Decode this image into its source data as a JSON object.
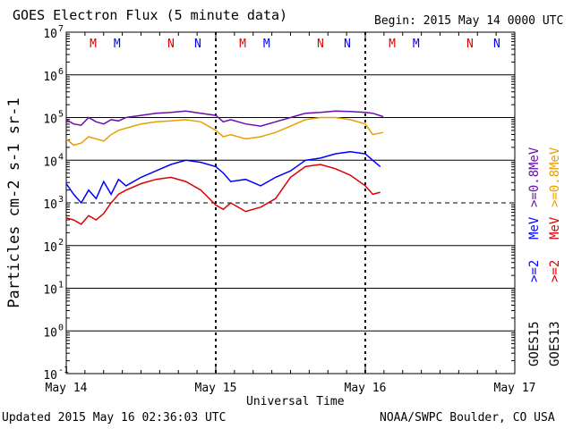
{
  "title": "GOES Electron Flux (5 minute data)",
  "begin_label": "Begin: 2015 May 14 0000 UTC",
  "updated_label": "Updated 2015 May 16 02:36:03 UTC",
  "credit_label": "NOAA/SWPC Boulder, CO USA",
  "colors": {
    "purple": "#6a0dad",
    "orange": "#e8a000",
    "blue": "#0000ff",
    "red": "#dd0000",
    "magenta": "#cc00cc"
  },
  "chart_data": {
    "type": "line",
    "xlabel": "Universal Time",
    "ylabel": "Particles cm-2 s-1 sr-1",
    "x_unit": "days since 2015 May 14 0000 UTC",
    "xlim": [
      0,
      3
    ],
    "ylim_log10": [
      -1,
      7
    ],
    "yscale": "log",
    "x_ticks": [
      {
        "x": 0,
        "label": "May 14"
      },
      {
        "x": 1,
        "label": "May 15"
      },
      {
        "x": 2,
        "label": "May 16"
      },
      {
        "x": 3,
        "label": "May 17"
      }
    ],
    "y_ticks": [
      {
        "exp": 7,
        "label": "7"
      },
      {
        "exp": 6,
        "label": "6"
      },
      {
        "exp": 5,
        "label": "5"
      },
      {
        "exp": 4,
        "label": "4"
      },
      {
        "exp": 3,
        "label": "3"
      },
      {
        "exp": 2,
        "label": "2"
      },
      {
        "exp": 1,
        "label": "1"
      },
      {
        "exp": 0,
        "label": "0"
      },
      {
        "exp": -1,
        "label": "-1"
      }
    ],
    "markers": [
      {
        "x": 0.18,
        "label": "M",
        "color": "red"
      },
      {
        "x": 0.34,
        "label": "M",
        "color": "blue"
      },
      {
        "x": 0.7,
        "label": "N",
        "color": "red"
      },
      {
        "x": 0.88,
        "label": "N",
        "color": "blue"
      },
      {
        "x": 1.18,
        "label": "M",
        "color": "red"
      },
      {
        "x": 1.34,
        "label": "M",
        "color": "blue"
      },
      {
        "x": 1.7,
        "label": "N",
        "color": "red"
      },
      {
        "x": 1.88,
        "label": "N",
        "color": "blue"
      },
      {
        "x": 2.18,
        "label": "M",
        "color": "red"
      },
      {
        "x": 2.34,
        "label": "M",
        "color": "blue"
      },
      {
        "x": 2.7,
        "label": "N",
        "color": "red"
      },
      {
        "x": 2.88,
        "label": "N",
        "color": "blue"
      }
    ],
    "threshold_log10": 3,
    "legend": [
      {
        "satellite": "GOES15",
        "energy": ">=2",
        "unit": "MeV",
        "low_label": ">=0.8",
        "colors": [
          "blue",
          "purple"
        ]
      },
      {
        "satellite": "GOES13",
        "energy": ">=2",
        "unit": "MeV",
        "low_label": ">=0.8",
        "colors": [
          "red",
          "orange"
        ]
      }
    ],
    "series": [
      {
        "name": "GOES15 >=0.8 MeV",
        "color": "purple",
        "x": [
          0,
          0.05,
          0.1,
          0.15,
          0.2,
          0.25,
          0.3,
          0.35,
          0.4,
          0.5,
          0.6,
          0.7,
          0.8,
          0.9,
          1.0,
          1.05,
          1.1,
          1.2,
          1.3,
          1.4,
          1.5,
          1.6,
          1.7,
          1.8,
          1.9,
          2.0,
          2.05,
          2.12
        ],
        "log": [
          4.95,
          4.85,
          4.82,
          5.0,
          4.9,
          4.85,
          4.95,
          4.92,
          5.0,
          5.05,
          5.1,
          5.12,
          5.15,
          5.1,
          5.05,
          4.9,
          4.95,
          4.85,
          4.8,
          4.9,
          5.0,
          5.1,
          5.12,
          5.15,
          5.14,
          5.12,
          5.1,
          5.02
        ]
      },
      {
        "name": "GOES13 >=0.8 MeV",
        "color": "orange",
        "x": [
          0,
          0.05,
          0.1,
          0.15,
          0.2,
          0.25,
          0.3,
          0.35,
          0.4,
          0.5,
          0.6,
          0.7,
          0.8,
          0.9,
          1.0,
          1.05,
          1.1,
          1.2,
          1.3,
          1.4,
          1.5,
          1.6,
          1.7,
          1.8,
          1.9,
          2.0,
          2.05,
          2.12
        ],
        "log": [
          4.5,
          4.35,
          4.4,
          4.55,
          4.5,
          4.45,
          4.6,
          4.7,
          4.75,
          4.85,
          4.9,
          4.92,
          4.95,
          4.9,
          4.7,
          4.55,
          4.6,
          4.5,
          4.55,
          4.65,
          4.8,
          4.95,
          5.0,
          5.0,
          4.95,
          4.85,
          4.6,
          4.65
        ]
      },
      {
        "name": "GOES15 >=2 MeV",
        "color": "blue",
        "x": [
          0,
          0.05,
          0.1,
          0.15,
          0.2,
          0.25,
          0.3,
          0.35,
          0.4,
          0.5,
          0.6,
          0.7,
          0.8,
          0.9,
          1.0,
          1.05,
          1.1,
          1.2,
          1.3,
          1.4,
          1.5,
          1.6,
          1.7,
          1.8,
          1.9,
          2.0,
          2.05,
          2.1
        ],
        "log": [
          3.45,
          3.2,
          3.0,
          3.3,
          3.1,
          3.5,
          3.2,
          3.55,
          3.4,
          3.6,
          3.75,
          3.9,
          4.0,
          3.95,
          3.85,
          3.7,
          3.5,
          3.55,
          3.4,
          3.6,
          3.75,
          4.0,
          4.05,
          4.15,
          4.2,
          4.15,
          4.0,
          3.85
        ]
      },
      {
        "name": "GOES13 >=2 MeV",
        "color": "red",
        "x": [
          0,
          0.05,
          0.1,
          0.15,
          0.2,
          0.25,
          0.3,
          0.35,
          0.4,
          0.5,
          0.6,
          0.7,
          0.8,
          0.9,
          1.0,
          1.05,
          1.1,
          1.2,
          1.3,
          1.4,
          1.5,
          1.6,
          1.7,
          1.8,
          1.9,
          2.0,
          2.05,
          2.1
        ],
        "log": [
          2.65,
          2.6,
          2.5,
          2.7,
          2.6,
          2.75,
          3.0,
          3.2,
          3.3,
          3.45,
          3.55,
          3.6,
          3.5,
          3.3,
          2.95,
          2.85,
          3.0,
          2.8,
          2.9,
          3.1,
          3.6,
          3.85,
          3.9,
          3.8,
          3.65,
          3.4,
          3.2,
          3.25
        ]
      }
    ]
  }
}
